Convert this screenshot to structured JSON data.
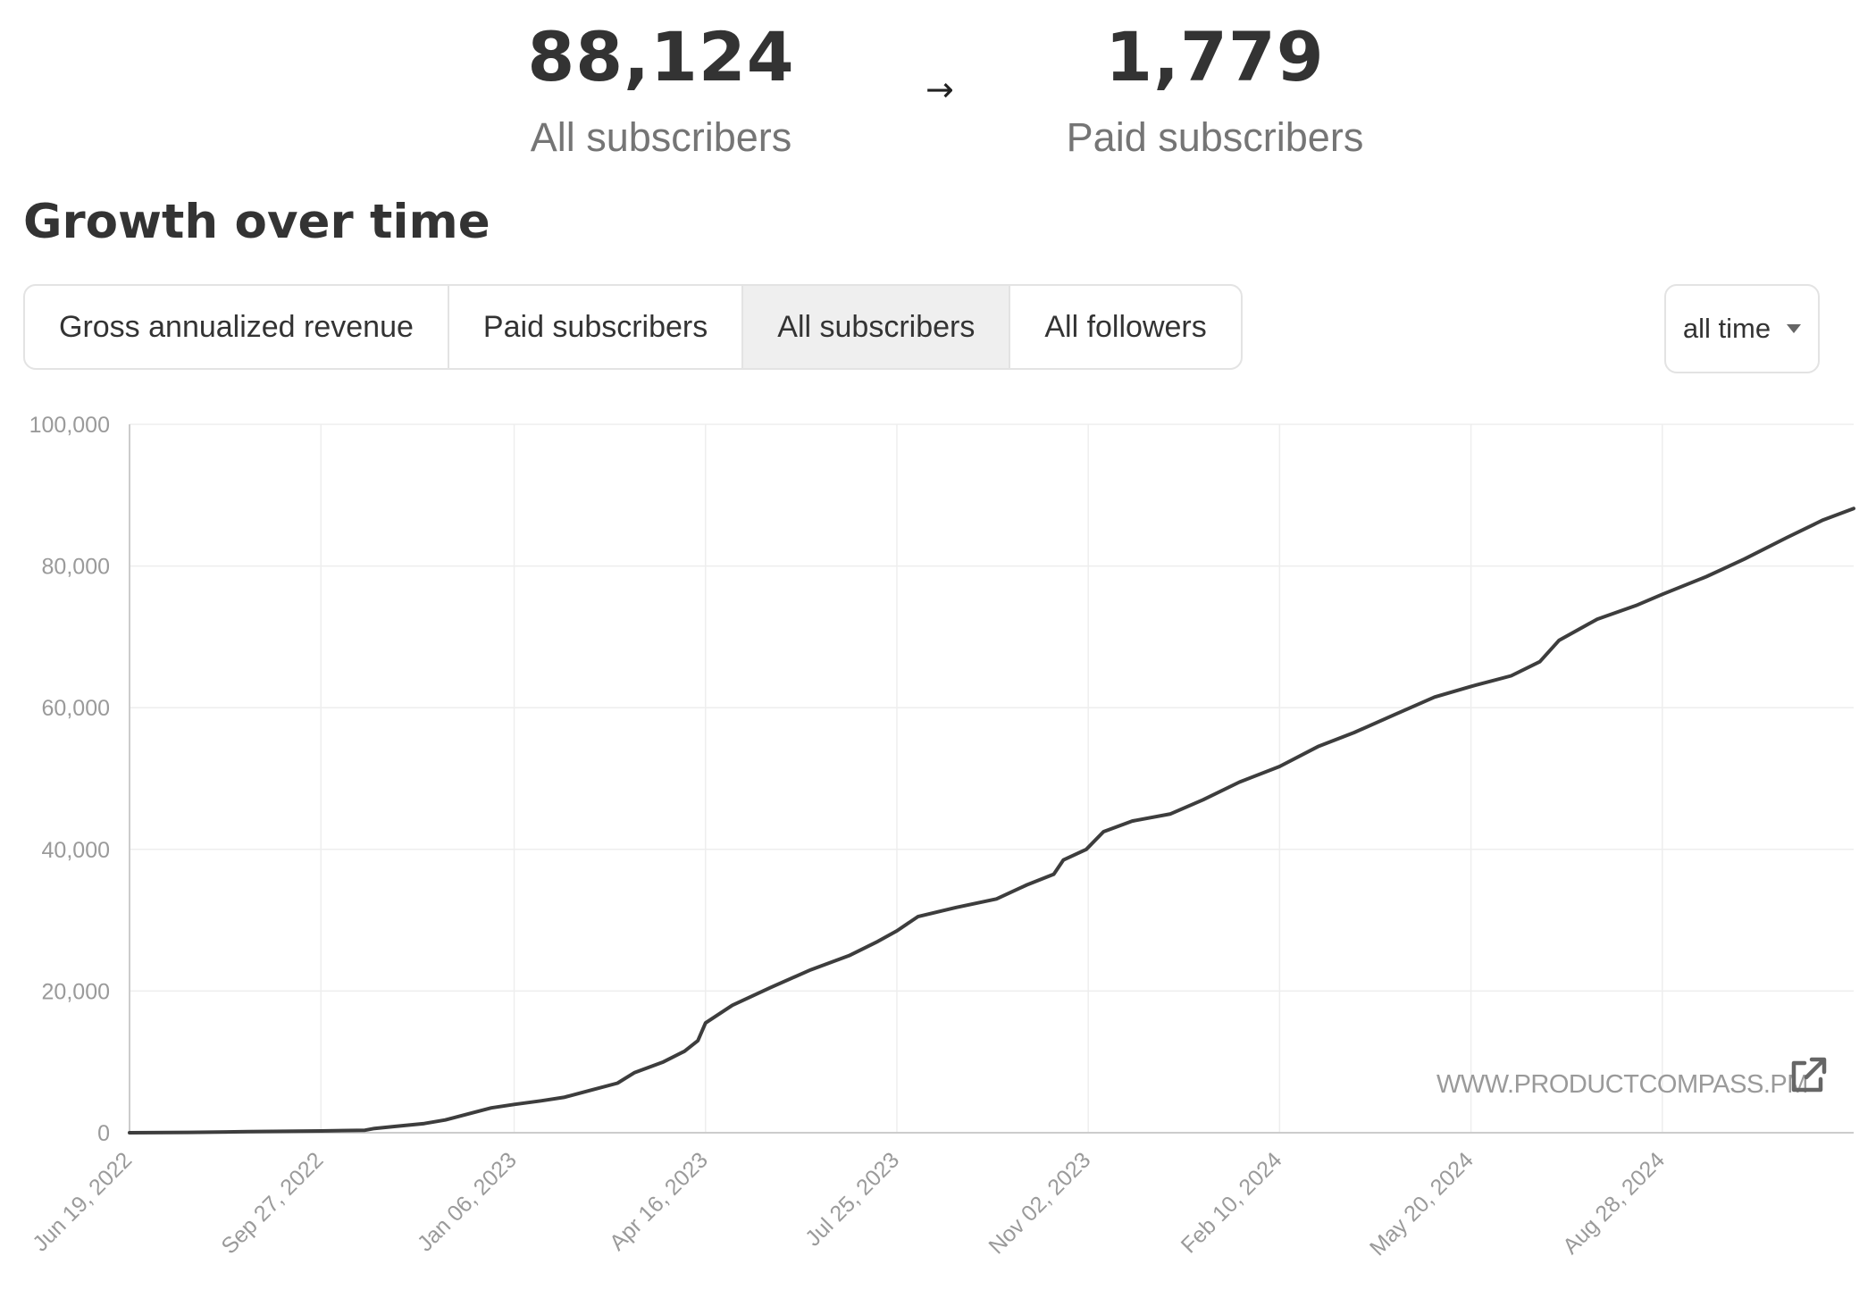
{
  "stats": {
    "all": {
      "value": "88,124",
      "label": "All subscribers"
    },
    "arrow": "→",
    "paid": {
      "value": "1,779",
      "label": "Paid subscribers"
    }
  },
  "section_title": "Growth over time",
  "tabs": [
    {
      "label": "Gross annualized revenue",
      "active": false
    },
    {
      "label": "Paid subscribers",
      "active": false
    },
    {
      "label": "All subscribers",
      "active": true
    },
    {
      "label": "All followers",
      "active": false
    }
  ],
  "range_select": {
    "value": "all time"
  },
  "watermark": "WWW.PRODUCTCOMPASS.PM",
  "icons": {
    "external": "external-link-icon",
    "dropdown": "chevron-down-icon"
  },
  "colors": {
    "line": "#3d3d3d",
    "grid": "#eeeeee",
    "axis": "#cccccc",
    "active_tab": "#efefef"
  },
  "chart_data": {
    "type": "line",
    "title": "",
    "xlabel": "",
    "ylabel": "",
    "ylim": [
      0,
      100000
    ],
    "xlim": [
      "2022-06-19",
      "2024-12-06"
    ],
    "yticks": [
      0,
      20000,
      40000,
      60000,
      80000,
      100000
    ],
    "ytick_labels": [
      "0",
      "20,000",
      "40,000",
      "60,000",
      "80,000",
      "100,000"
    ],
    "xticks": [
      "2022-06-19",
      "2022-09-27",
      "2023-01-06",
      "2023-04-16",
      "2023-07-25",
      "2023-11-02",
      "2024-02-10",
      "2024-05-20",
      "2024-08-28"
    ],
    "xtick_labels": [
      "Jun 19, 2022",
      "Sep 27, 2022",
      "Jan 06, 2023",
      "Apr 16, 2023",
      "Jul 25, 2023",
      "Nov 02, 2023",
      "Feb 10, 2024",
      "May 20, 2024",
      "Aug 28, 2024"
    ],
    "grid": true,
    "series": [
      {
        "points": [
          [
            "2022-06-19",
            0
          ],
          [
            "2022-07-20",
            50
          ],
          [
            "2022-08-20",
            150
          ],
          [
            "2022-09-27",
            250
          ],
          [
            "2022-10-20",
            350
          ],
          [
            "2022-10-25",
            600
          ],
          [
            "2022-11-05",
            900
          ],
          [
            "2022-11-20",
            1300
          ],
          [
            "2022-12-01",
            1800
          ],
          [
            "2022-12-15",
            2800
          ],
          [
            "2022-12-25",
            3500
          ],
          [
            "2023-01-06",
            4000
          ],
          [
            "2023-01-20",
            4500
          ],
          [
            "2023-02-01",
            5000
          ],
          [
            "2023-02-15",
            6000
          ],
          [
            "2023-03-01",
            7000
          ],
          [
            "2023-03-10",
            8500
          ],
          [
            "2023-03-25",
            10000
          ],
          [
            "2023-04-05",
            11500
          ],
          [
            "2023-04-12",
            13000
          ],
          [
            "2023-04-16",
            15500
          ],
          [
            "2023-04-30",
            18000
          ],
          [
            "2023-05-20",
            20500
          ],
          [
            "2023-06-10",
            23000
          ],
          [
            "2023-06-30",
            25000
          ],
          [
            "2023-07-15",
            27000
          ],
          [
            "2023-07-25",
            28500
          ],
          [
            "2023-08-05",
            30500
          ],
          [
            "2023-08-25",
            31800
          ],
          [
            "2023-09-15",
            33000
          ],
          [
            "2023-10-01",
            35000
          ],
          [
            "2023-10-15",
            36500
          ],
          [
            "2023-10-20",
            38500
          ],
          [
            "2023-11-01",
            40000
          ],
          [
            "2023-11-10",
            42500
          ],
          [
            "2023-11-25",
            44000
          ],
          [
            "2023-12-15",
            45000
          ],
          [
            "2024-01-01",
            47000
          ],
          [
            "2024-01-20",
            49500
          ],
          [
            "2024-02-10",
            51700
          ],
          [
            "2024-03-01",
            54500
          ],
          [
            "2024-03-20",
            56500
          ],
          [
            "2024-04-10",
            59000
          ],
          [
            "2024-05-01",
            61500
          ],
          [
            "2024-05-20",
            63000
          ],
          [
            "2024-06-10",
            64500
          ],
          [
            "2024-06-25",
            66500
          ],
          [
            "2024-07-05",
            69500
          ],
          [
            "2024-07-25",
            72500
          ],
          [
            "2024-08-15",
            74500
          ],
          [
            "2024-08-28",
            76000
          ],
          [
            "2024-09-20",
            78500
          ],
          [
            "2024-10-10",
            81000
          ],
          [
            "2024-11-01",
            84000
          ],
          [
            "2024-11-20",
            86500
          ],
          [
            "2024-12-06",
            88124
          ]
        ]
      }
    ]
  }
}
